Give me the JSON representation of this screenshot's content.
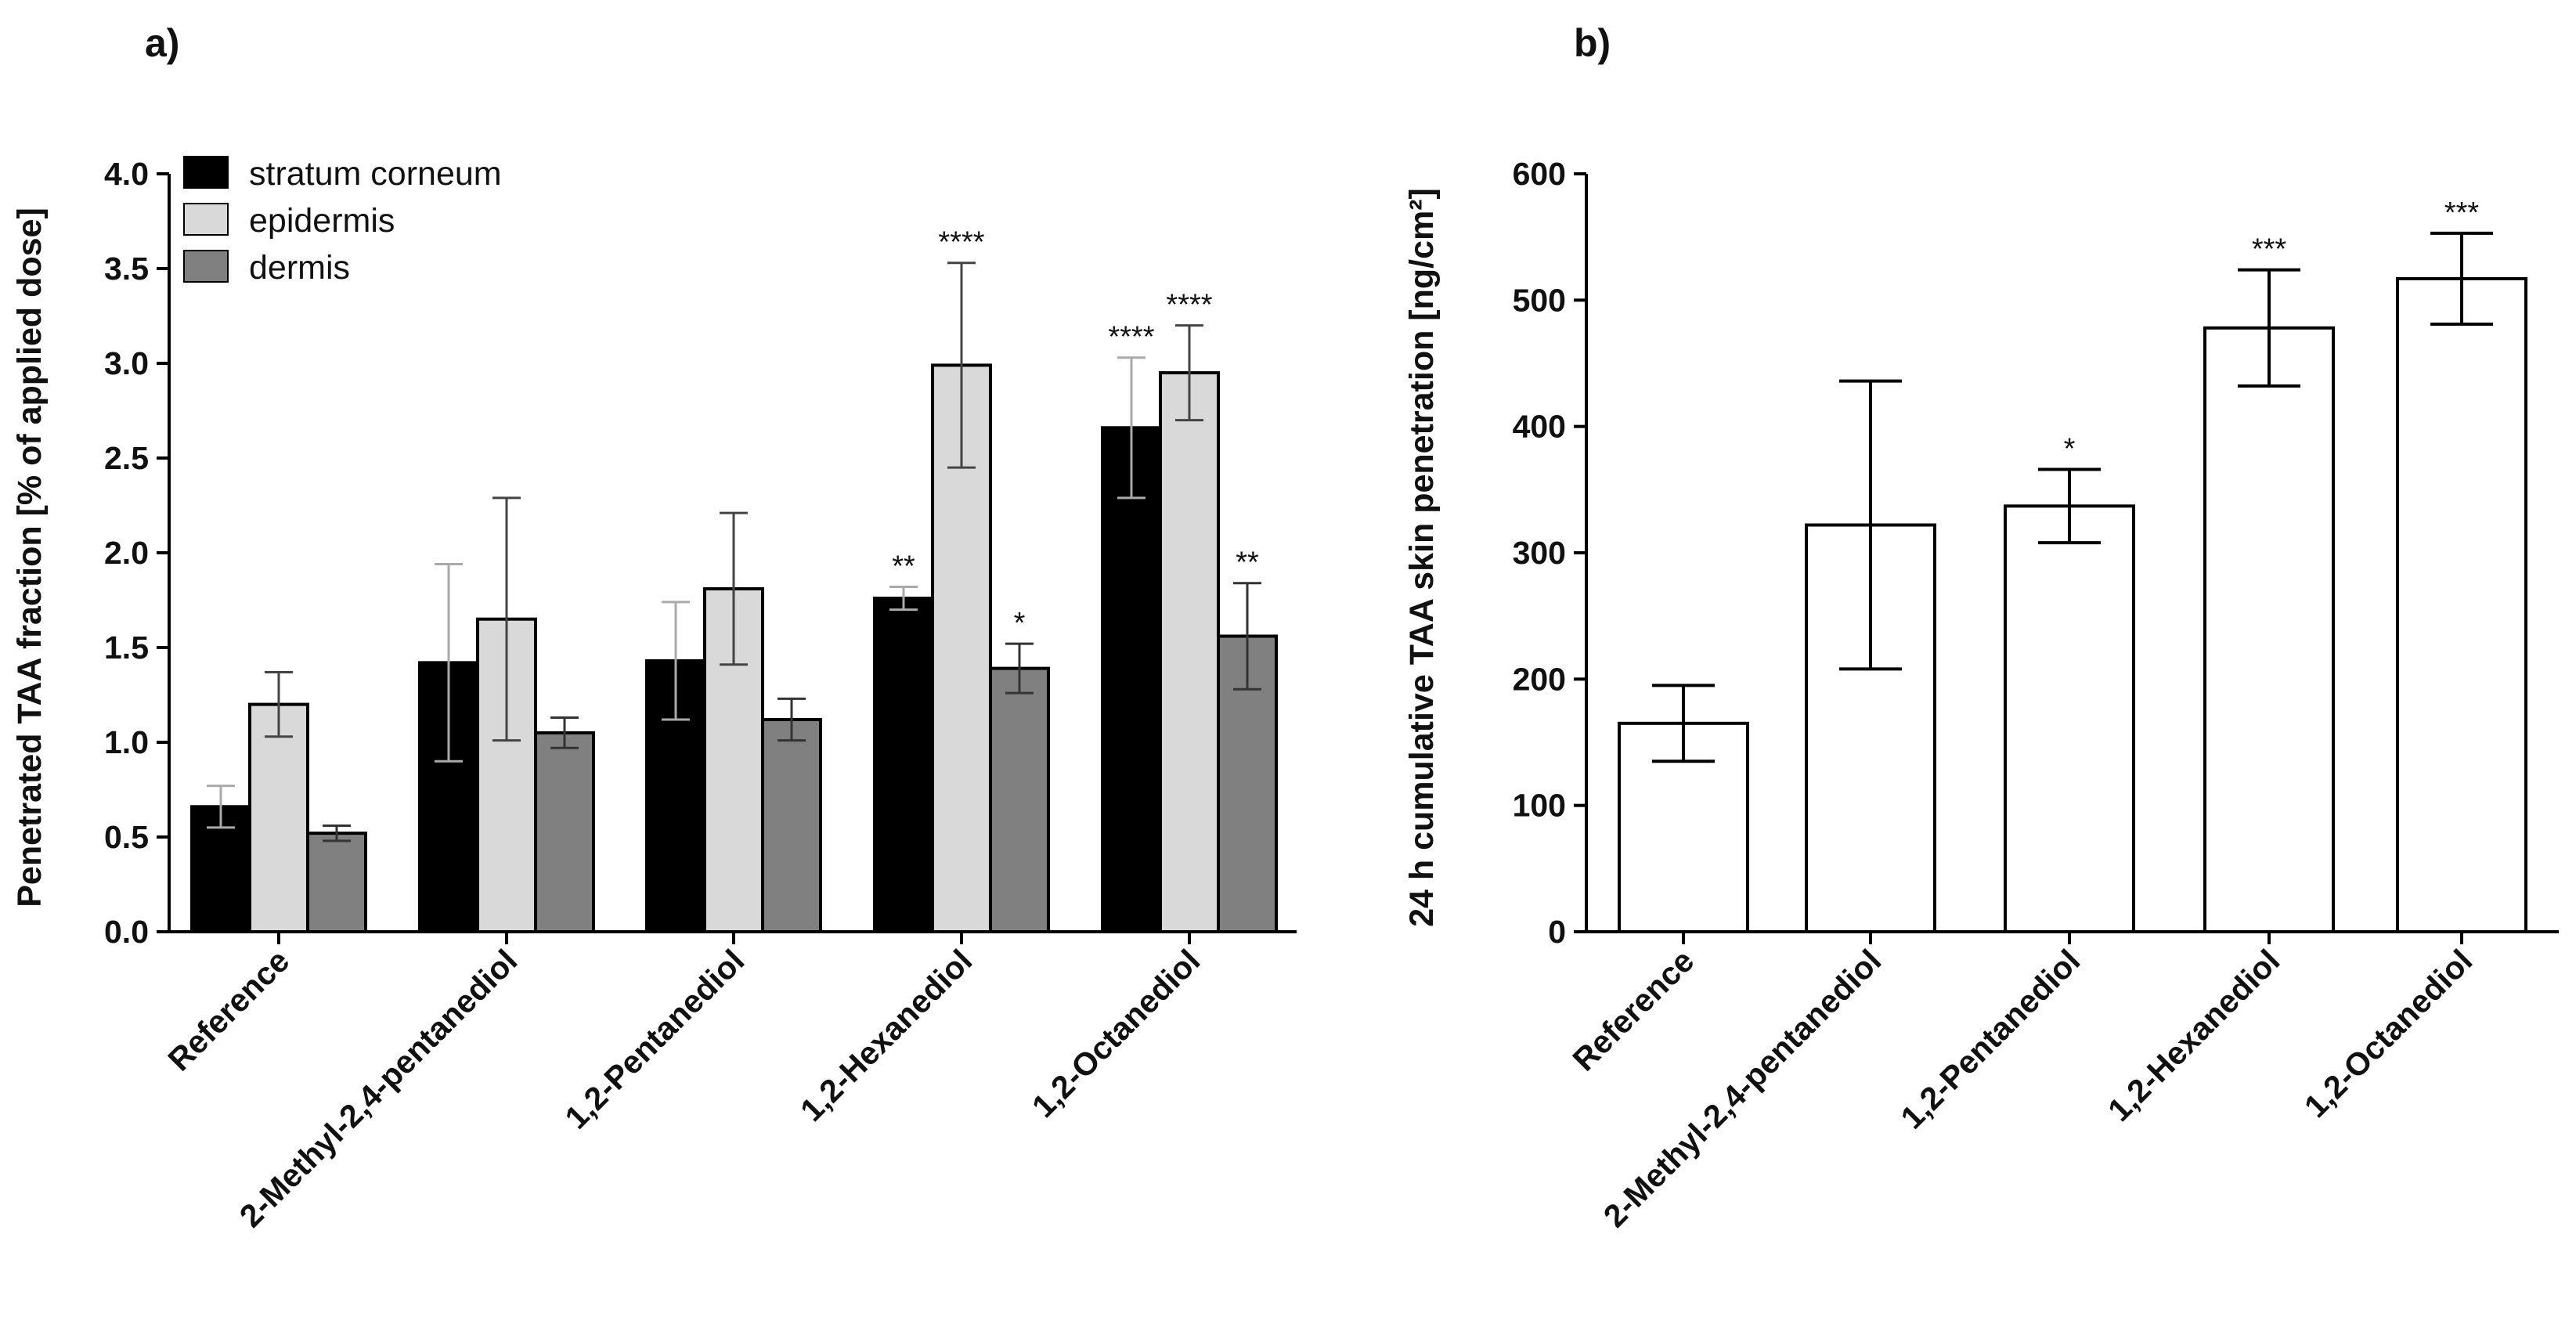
{
  "chart_data": [
    {
      "panel_label": "a)",
      "type": "bar",
      "categories": [
        "Reference",
        "2-Methyl-2,4-pentanediol",
        "1,2-Pentanediol",
        "1,2-Hexanediol",
        "1,2-Octanediol"
      ],
      "series": [
        {
          "name": "stratum corneum",
          "color": "#000000",
          "values": [
            0.66,
            1.42,
            1.43,
            1.76,
            2.66
          ],
          "errors": [
            0.11,
            0.52,
            0.31,
            0.06,
            0.37
          ],
          "significance": [
            "",
            "",
            "",
            "**",
            "****"
          ]
        },
        {
          "name": "epidermis",
          "color": "#d9d9d9",
          "values": [
            1.2,
            1.65,
            1.81,
            2.99,
            2.95
          ],
          "errors": [
            0.17,
            0.64,
            0.4,
            0.54,
            0.25
          ],
          "significance": [
            "",
            "",
            "",
            "****",
            "****"
          ]
        },
        {
          "name": "dermis",
          "color": "#808080",
          "values": [
            0.52,
            1.05,
            1.12,
            1.39,
            1.56
          ],
          "errors": [
            0.04,
            0.08,
            0.11,
            0.13,
            0.28
          ],
          "significance": [
            "",
            "",
            "",
            "*",
            "**"
          ]
        }
      ],
      "title": "",
      "xlabel": "",
      "ylabel": "Penetrated TAA fraction [% of applied dose]",
      "ylim": [
        0,
        4.0
      ],
      "yticks": [
        "0.0",
        "0.5",
        "1.0",
        "1.5",
        "2.0",
        "2.5",
        "3.0",
        "3.5",
        "4.0"
      ],
      "legend_position": "top-left",
      "grid": false
    },
    {
      "panel_label": "b)",
      "type": "bar",
      "categories": [
        "Reference",
        "2-Methyl-2,4-pentanediol",
        "1,2-Pentanediol",
        "1,2-Hexanediol",
        "1,2-Octanediol"
      ],
      "series": [
        {
          "name": "24 h cumulative TAA skin penetration",
          "color": "#ffffff",
          "values": [
            165,
            322,
            337,
            478,
            517
          ],
          "errors": [
            30,
            114,
            29,
            46,
            36
          ],
          "significance": [
            "",
            "",
            "*",
            "***",
            "***"
          ]
        }
      ],
      "title": "",
      "xlabel": "",
      "ylabel": "24 h cumulative TAA skin penetration [ng/cm²]",
      "ylim": [
        0,
        600
      ],
      "yticks": [
        "0",
        "100",
        "200",
        "300",
        "400",
        "500",
        "600"
      ],
      "grid": false
    }
  ]
}
